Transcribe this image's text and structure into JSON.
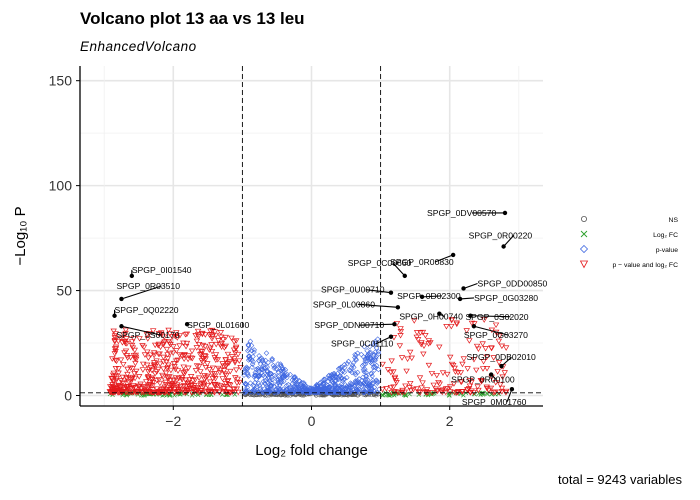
{
  "chart_data": {
    "type": "scatter",
    "title": "Volcano plot 13 aa vs 13 leu",
    "subtitle": "EnhancedVolcano",
    "xlabel": "Log₂ fold change",
    "ylabel": "−Log₁₀ P",
    "caption": "total = 9243 variables",
    "xlim": [
      -3.35,
      3.35
    ],
    "ylim": [
      -5,
      157
    ],
    "x_ticks": [
      -2,
      0,
      2
    ],
    "y_ticks": [
      0,
      50,
      100,
      150
    ],
    "fc_cutoff": 1,
    "p_cutoff_log10": 1.3,
    "grid": true,
    "legend_position": "right",
    "legend": [
      {
        "label": "NS",
        "color": "#555555",
        "shape": "circle"
      },
      {
        "label": "Log₂ FC",
        "color": "#2ca02c",
        "shape": "cross"
      },
      {
        "label": "p-value",
        "color": "#4169e1",
        "shape": "diamond"
      },
      {
        "label": "p − value and log₂ FC",
        "color": "#e41a1c",
        "shape": "triangle-down"
      }
    ],
    "labeled_points": [
      {
        "label": "SPGP_0DV00570",
        "x": 2.8,
        "y": 87
      },
      {
        "label": "SPGP_0R00220",
        "x": 2.78,
        "y": 71
      },
      {
        "label": "SPGP_0R00830",
        "x": 2.05,
        "y": 67
      },
      {
        "label": "SPGP_0C00660",
        "x": 1.35,
        "y": 57
      },
      {
        "label": "SPGP_0DD00850",
        "x": 2.2,
        "y": 51
      },
      {
        "label": "SPGP_0U00710",
        "x": 1.15,
        "y": 49
      },
      {
        "label": "SPGP_0D02300",
        "x": 1.6,
        "y": 47
      },
      {
        "label": "SPGP_0G03280",
        "x": 2.15,
        "y": 46
      },
      {
        "label": "SPGP_0L00860",
        "x": 1.25,
        "y": 42
      },
      {
        "label": "SPGP_0H00740",
        "x": 1.85,
        "y": 39
      },
      {
        "label": "SPGP_0S02020",
        "x": 2.3,
        "y": 38
      },
      {
        "label": "SPGP_0DN00710",
        "x": 1.2,
        "y": 34
      },
      {
        "label": "SPGP_0G03270",
        "x": 2.35,
        "y": 33
      },
      {
        "label": "SPGP_0C01110",
        "x": 1.15,
        "y": 28
      },
      {
        "label": "SPGP_0DB02010",
        "x": 2.75,
        "y": 14
      },
      {
        "label": "SPGP_0R00100",
        "x": 2.6,
        "y": 10
      },
      {
        "label": "SPGP_0M01760",
        "x": 2.9,
        "y": 3
      },
      {
        "label": "SPGP_0I01540",
        "x": -2.6,
        "y": 57
      },
      {
        "label": "SPGP_0R03510",
        "x": -2.75,
        "y": 46
      },
      {
        "label": "SPGP_0Q02220",
        "x": -2.85,
        "y": 38
      },
      {
        "label": "SPGP_0L01600",
        "x": -1.8,
        "y": 34
      },
      {
        "label": "SPGP_0S00170",
        "x": -2.75,
        "y": 33
      }
    ]
  }
}
